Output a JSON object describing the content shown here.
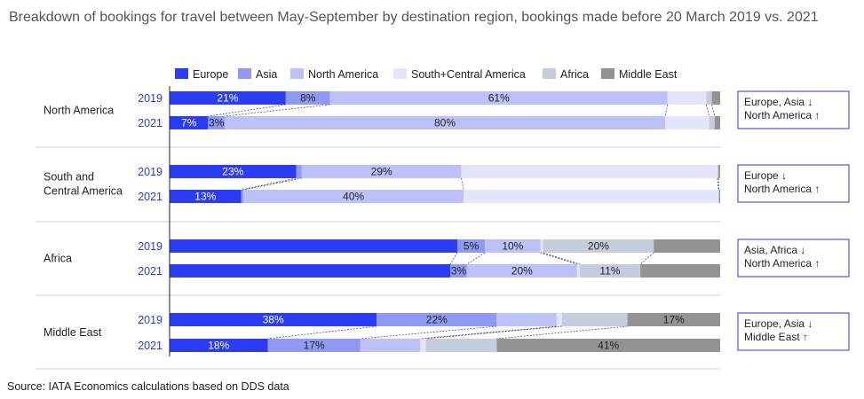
{
  "title": "Breakdown of bookings for travel between May-September by destination region, bookings made before 20 March 2019 vs. 2021",
  "source": "Source: IATA Economics calculations based on DDS data",
  "colors": {
    "Europe": "#2b3cf5",
    "Asia": "#8f99f3",
    "North America": "#bcc2f7",
    "South+Central America": "#e2e5fc",
    "Africa": "#c5ccde",
    "Middle East": "#939393"
  },
  "chart_data": {
    "type": "bar",
    "orientation": "horizontal-stacked",
    "legend_position": "top",
    "series_names": [
      "Europe",
      "Asia",
      "North America",
      "South+Central America",
      "Africa",
      "Middle East"
    ],
    "groups": [
      {
        "region": "North America",
        "note": [
          "Europe, Asia ↓",
          "North America ↑"
        ],
        "rows": [
          {
            "year": "2019",
            "values": [
              21,
              8,
              61,
              7,
              1,
              1.5
            ],
            "labels": [
              "21%",
              "8%",
              "61%",
              "",
              "",
              ""
            ]
          },
          {
            "year": "2021",
            "values": [
              7,
              3,
              80,
              8,
              1,
              1
            ],
            "labels": [
              "7%",
              "3%",
              "80%",
              "",
              "",
              ""
            ]
          }
        ]
      },
      {
        "region": "South and Central America",
        "region_lines": [
          "South and",
          "Central America"
        ],
        "note": [
          "Europe ↓",
          "North America ↑"
        ],
        "rows": [
          {
            "year": "2019",
            "values": [
              23,
              1,
              29,
              46.5,
              0.2,
              0.3
            ],
            "labels": [
              "23%",
              "",
              "29%",
              "",
              "",
              ""
            ]
          },
          {
            "year": "2021",
            "values": [
              13,
              0.4,
              40,
              46.3,
              0.1,
              0.2
            ],
            "labels": [
              "13%",
              "",
              "40%",
              "",
              "",
              ""
            ]
          }
        ]
      },
      {
        "region": "Africa",
        "note": [
          "Asia, Africa ↓",
          "North America ↑"
        ],
        "rows": [
          {
            "year": "2019",
            "values": [
              52,
              5,
              10,
              0.5,
              20,
              12
            ],
            "labels": [
              "",
              "5%",
              "10%",
              "",
              "20%",
              ""
            ]
          },
          {
            "year": "2021",
            "values": [
              51,
              3,
              20,
              0.5,
              11,
              14.5
            ],
            "labels": [
              "",
              "3%",
              "20%",
              "",
              "11%",
              ""
            ]
          }
        ]
      },
      {
        "region": "Middle East",
        "note": [
          "Europe, Asia ↓",
          "Middle East ↑"
        ],
        "rows": [
          {
            "year": "2019",
            "values": [
              38,
              22,
              11,
              1,
              12,
              17
            ],
            "labels": [
              "38%",
              "22%",
              "",
              "",
              "",
              "17%"
            ]
          },
          {
            "year": "2021",
            "values": [
              18,
              17,
              11,
              1,
              13,
              41
            ],
            "labels": [
              "18%",
              "17%",
              "",
              "",
              "",
              "41%"
            ]
          }
        ]
      }
    ]
  }
}
